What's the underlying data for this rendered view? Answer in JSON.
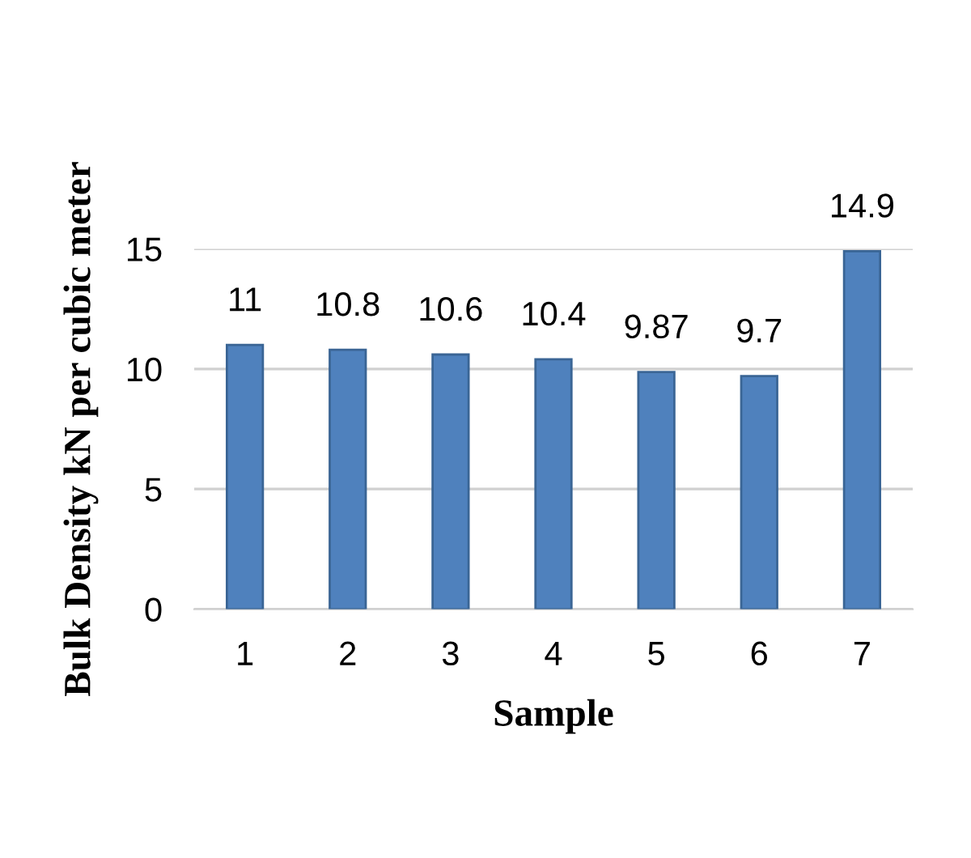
{
  "chart_data": {
    "type": "bar",
    "xlabel": "Sample",
    "ylabel": "Bulk Density kN per cubic meter",
    "categories": [
      "1",
      "2",
      "3",
      "4",
      "5",
      "6",
      "7"
    ],
    "values": [
      11,
      10.8,
      10.6,
      10.4,
      9.87,
      9.7,
      14.9
    ],
    "color": "#4f81bd",
    "ylim": [
      0,
      15
    ],
    "yticks": [
      0,
      5,
      10,
      15
    ],
    "grid": "y",
    "data_labels": true,
    "legend": false
  }
}
